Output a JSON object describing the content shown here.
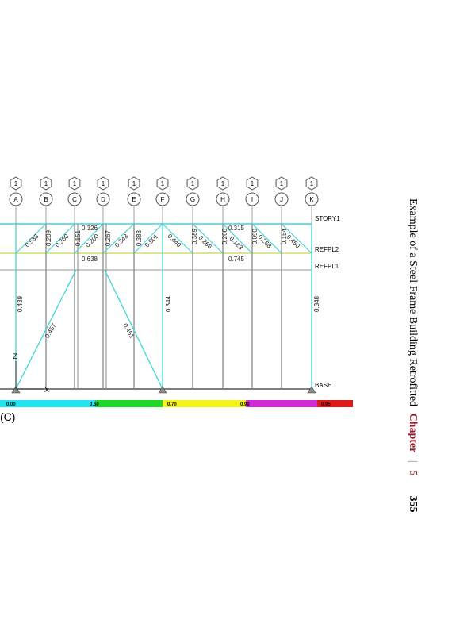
{
  "diagram": {
    "gridlines": [
      {
        "bubble": "1",
        "label": "A"
      },
      {
        "bubble": "1",
        "label": "B"
      },
      {
        "bubble": "1",
        "label": "C"
      },
      {
        "bubble": "1",
        "label": "D"
      },
      {
        "bubble": "1",
        "label": "E"
      },
      {
        "bubble": "1",
        "label": "F"
      },
      {
        "bubble": "1",
        "label": "G"
      },
      {
        "bubble": "1",
        "label": "H"
      },
      {
        "bubble": "1",
        "label": "I"
      },
      {
        "bubble": "1",
        "label": "J"
      },
      {
        "bubble": "1",
        "label": "K"
      }
    ],
    "levels": [
      "STORY1",
      "REFPL2",
      "REFPL1",
      "BASE"
    ],
    "member_labels": [
      "0.533",
      "0.209",
      "0.360",
      "0.151",
      "0.326",
      "0.200",
      "0.267",
      "0.343",
      "0.388",
      "0.501",
      "0.440",
      "0.389",
      "0.266",
      "0.266",
      "0.315",
      "0.123",
      "0.090",
      "0.268",
      "0.154",
      "0.450",
      "0.638",
      "0.745",
      "0.439",
      "0.457",
      "0.451",
      "0.344",
      "0.348"
    ],
    "axis_labels": [
      "Z",
      "X"
    ],
    "legend": [
      "0.00",
      "0.50",
      "0.70",
      "0.90",
      "0.95"
    ],
    "caption": "(C)"
  },
  "running_header": {
    "text": "Example of a Steel Frame Building Retrofitted",
    "chapter": "Chapter",
    "separator": "|",
    "chapter_number": "5",
    "page": "355"
  }
}
